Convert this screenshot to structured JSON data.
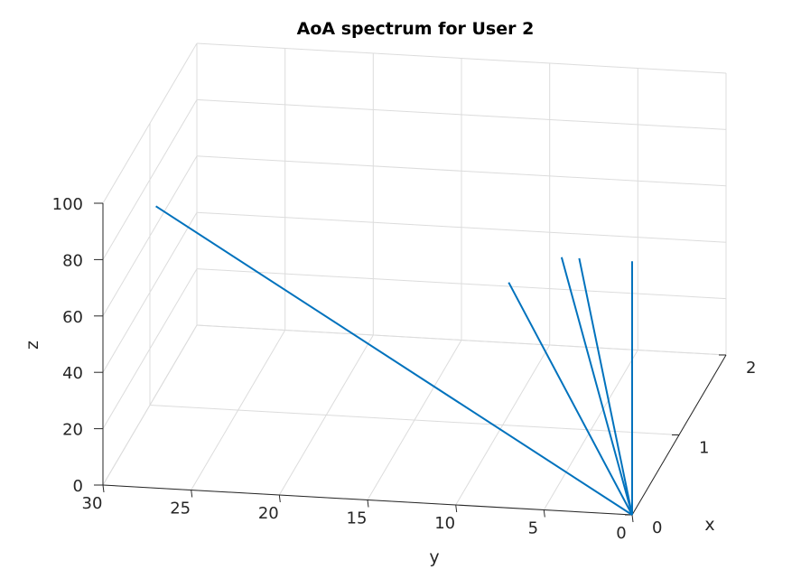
{
  "chart_data": {
    "type": "line3d",
    "title": "AoA spectrum for User 2",
    "xlabel": "x",
    "ylabel": "y",
    "zlabel": "z",
    "xlim": [
      0,
      2
    ],
    "ylim": [
      0,
      30
    ],
    "zlim": [
      0,
      100
    ],
    "x_ticks": [
      "0",
      "1",
      "2"
    ],
    "y_ticks": [
      "0",
      "5",
      "10",
      "15",
      "20",
      "25",
      "30"
    ],
    "z_ticks": [
      "0",
      "20",
      "40",
      "60",
      "80",
      "100"
    ],
    "grid": true,
    "series": [
      {
        "x": [
          0,
          0
        ],
        "y": [
          0,
          27
        ],
        "z": [
          0,
          100
        ]
      },
      {
        "x": [
          0,
          0
        ],
        "y": [
          0,
          7
        ],
        "z": [
          0,
          80
        ]
      },
      {
        "x": [
          0,
          0
        ],
        "y": [
          0,
          4
        ],
        "z": [
          0,
          90
        ]
      },
      {
        "x": [
          0,
          0
        ],
        "y": [
          0,
          3
        ],
        "z": [
          0,
          90
        ]
      },
      {
        "x": [
          0,
          0
        ],
        "y": [
          0,
          0
        ],
        "z": [
          0,
          90
        ]
      }
    ]
  }
}
